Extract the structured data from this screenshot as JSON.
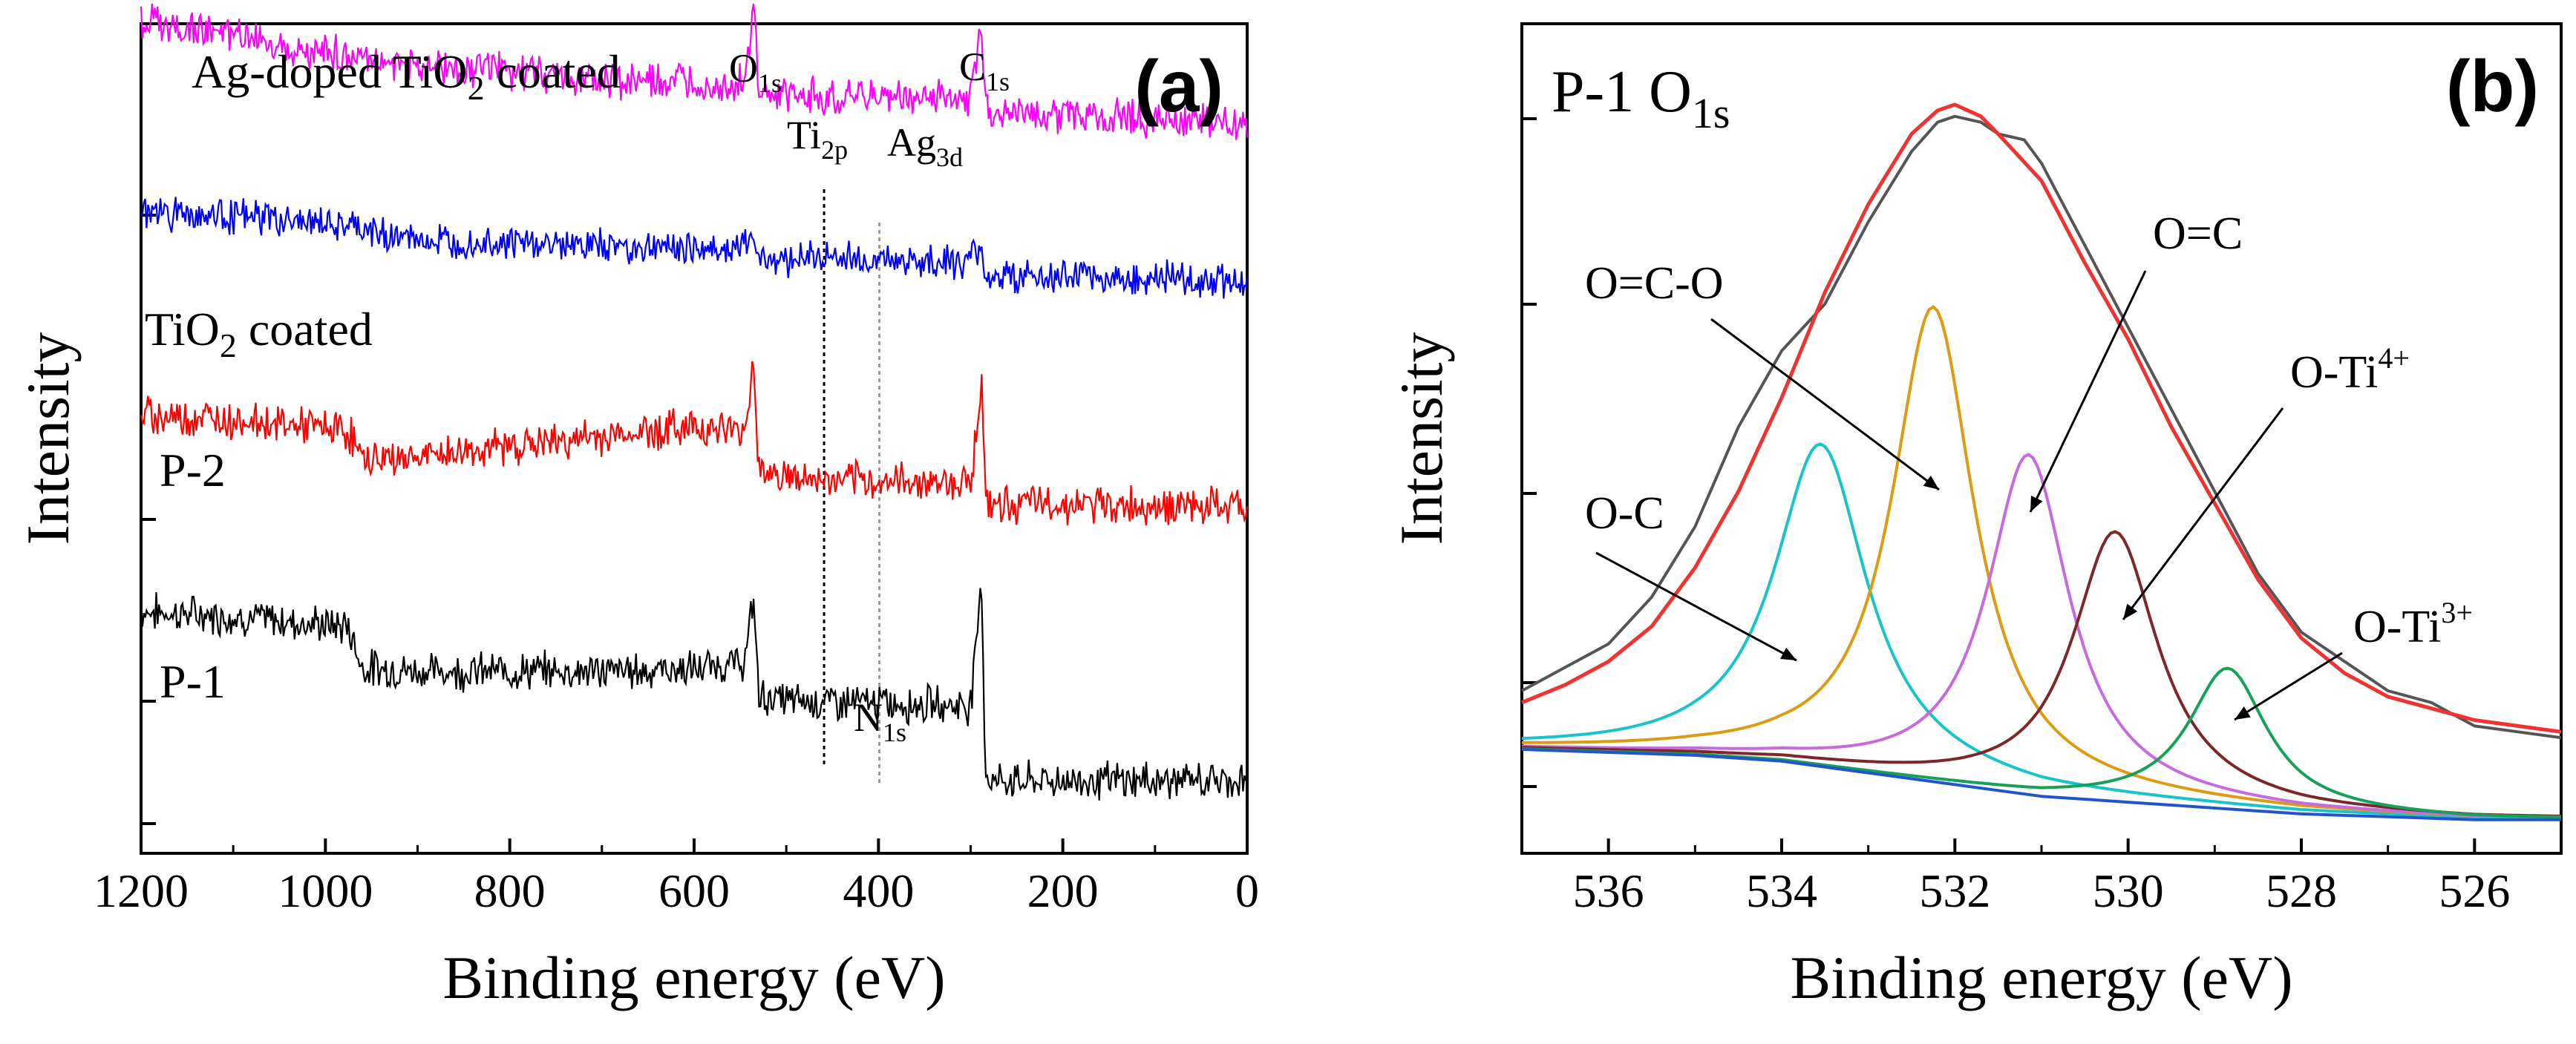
{
  "chart_data": [
    {
      "type": "line",
      "panel_label": "(a)",
      "xlabel": "Binding energy (eV)",
      "ylabel": "Intensity",
      "xlim": [
        1200,
        0
      ],
      "x_reversed": true,
      "x_ticks": [
        1200,
        1000,
        800,
        600,
        400,
        200,
        0
      ],
      "y_ticks_labeled": false,
      "series": [
        {
          "name": "P-1",
          "label": "P-1",
          "color": "#000000",
          "points": [
            [
              1200,
              1.05
            ],
            [
              1100,
              0.99
            ],
            [
              1000,
              0.9
            ],
            [
              975,
              0.88
            ],
            [
              960,
              0.42
            ],
            [
              900,
              0.38
            ],
            [
              800,
              0.38
            ],
            [
              700,
              0.38
            ],
            [
              600,
              0.4
            ],
            [
              545,
              0.48
            ],
            [
              535,
              1.2
            ],
            [
              530,
              0.1
            ],
            [
              500,
              0.05
            ],
            [
              460,
              0.04
            ],
            [
              400,
              0.02
            ],
            [
              300,
              0.0
            ],
            [
              288,
              1.4
            ],
            [
              284,
              -0.8
            ],
            [
              270,
              -0.85
            ],
            [
              100,
              -0.85
            ],
            [
              0,
              -0.85
            ]
          ]
        },
        {
          "name": "P-2",
          "label": "P-2",
          "color": "#ff0000",
          "points": [
            [
              1200,
              1.3
            ],
            [
              1100,
              1.25
            ],
            [
              1000,
              1.15
            ],
            [
              975,
              1.12
            ],
            [
              960,
              0.8
            ],
            [
              900,
              0.82
            ],
            [
              800,
              0.95
            ],
            [
              700,
              1.05
            ],
            [
              600,
              1.18
            ],
            [
              545,
              1.1
            ],
            [
              535,
              1.95
            ],
            [
              530,
              0.7
            ],
            [
              500,
              0.6
            ],
            [
              460,
              0.55
            ],
            [
              400,
              0.55
            ],
            [
              300,
              0.55
            ],
            [
              288,
              1.7
            ],
            [
              284,
              0.3
            ],
            [
              270,
              0.3
            ],
            [
              100,
              0.28
            ],
            [
              0,
              0.26
            ]
          ]
        },
        {
          "name": "TiO2 coated",
          "label_main": "TiO",
          "label_sub": "2",
          "label_tail": " coated",
          "color": "#0000ff",
          "points": [
            [
              1200,
              1.0
            ],
            [
              1100,
              0.95
            ],
            [
              1000,
              0.85
            ],
            [
              900,
              0.65
            ],
            [
              800,
              0.62
            ],
            [
              700,
              0.58
            ],
            [
              600,
              0.55
            ],
            [
              545,
              0.55
            ],
            [
              535,
              0.75
            ],
            [
              530,
              0.45
            ],
            [
              500,
              0.42
            ],
            [
              460,
              0.45
            ],
            [
              400,
              0.4
            ],
            [
              300,
              0.38
            ],
            [
              288,
              0.6
            ],
            [
              284,
              0.2
            ],
            [
              270,
              0.2
            ],
            [
              100,
              0.18
            ],
            [
              0,
              0.15
            ]
          ]
        },
        {
          "name": "Ag-doped TiO2 coated",
          "label_main": "Ag-doped TiO",
          "label_sub": "2",
          "label_tail": " coated",
          "color": "#ff00ff",
          "points": [
            [
              1200,
              1.55
            ],
            [
              1100,
              1.4
            ],
            [
              1000,
              1.2
            ],
            [
              900,
              1.05
            ],
            [
              800,
              1.0
            ],
            [
              700,
              0.9
            ],
            [
              600,
              0.85
            ],
            [
              545,
              0.85
            ],
            [
              535,
              1.75
            ],
            [
              530,
              0.7
            ],
            [
              500,
              0.7
            ],
            [
              460,
              0.72
            ],
            [
              400,
              0.7
            ],
            [
              300,
              0.7
            ],
            [
              288,
              1.55
            ],
            [
              284,
              0.55
            ],
            [
              270,
              0.55
            ],
            [
              100,
              0.45
            ],
            [
              0,
              0.4
            ]
          ]
        }
      ],
      "peak_labels": [
        {
          "main": "O",
          "sub": "1s",
          "x": 531
        },
        {
          "main": "Ti",
          "sub": "2p",
          "x": 459
        },
        {
          "main": "Ag",
          "sub": "3d",
          "x": 368
        },
        {
          "main": "C",
          "sub": "1s",
          "x": 285
        },
        {
          "main": "N",
          "sub": "1s",
          "x": 399
        }
      ],
      "reference_lines": [
        459,
        399
      ]
    },
    {
      "type": "line",
      "panel_label": "(b)",
      "title_main": "P-1 O",
      "title_sub": "1s",
      "xlabel": "Binding energy (eV)",
      "ylabel": "Intensity",
      "xlim": [
        537,
        525
      ],
      "x_reversed": true,
      "x_ticks": [
        536,
        534,
        532,
        530,
        528,
        526
      ],
      "y_ticks_labeled": false,
      "series": [
        {
          "name": "Raw data",
          "color": "#555555",
          "points": [
            [
              537,
              0.1
            ],
            [
              536.5,
              0.14
            ],
            [
              536,
              0.18
            ],
            [
              535.5,
              0.26
            ],
            [
              535,
              0.38
            ],
            [
              534.5,
              0.55
            ],
            [
              534,
              0.68
            ],
            [
              533.5,
              0.76
            ],
            [
              533,
              0.9
            ],
            [
              532.5,
              1.02
            ],
            [
              532.2,
              1.07
            ],
            [
              532,
              1.08
            ],
            [
              531.7,
              1.07
            ],
            [
              531.5,
              1.05
            ],
            [
              531.2,
              1.04
            ],
            [
              531,
              1.0
            ],
            [
              530.5,
              0.86
            ],
            [
              530,
              0.72
            ],
            [
              529.5,
              0.58
            ],
            [
              529,
              0.44
            ],
            [
              528.5,
              0.3
            ],
            [
              528,
              0.2
            ],
            [
              527.5,
              0.15
            ],
            [
              527,
              0.1
            ],
            [
              526.5,
              0.08
            ],
            [
              526,
              0.04
            ],
            [
              525.5,
              0.03
            ],
            [
              525,
              0.02
            ]
          ]
        },
        {
          "name": "Fitted envelope",
          "color": "#ee3333",
          "points": [
            [
              537,
              0.08
            ],
            [
              536.5,
              0.11
            ],
            [
              536,
              0.15
            ],
            [
              535.5,
              0.21
            ],
            [
              535,
              0.31
            ],
            [
              534.5,
              0.44
            ],
            [
              534,
              0.6
            ],
            [
              533.5,
              0.78
            ],
            [
              533,
              0.93
            ],
            [
              532.5,
              1.05
            ],
            [
              532.2,
              1.09
            ],
            [
              532,
              1.1
            ],
            [
              531.7,
              1.08
            ],
            [
              531.5,
              1.05
            ],
            [
              531,
              0.97
            ],
            [
              530.5,
              0.83
            ],
            [
              530,
              0.7
            ],
            [
              529.5,
              0.55
            ],
            [
              529,
              0.42
            ],
            [
              528.5,
              0.29
            ],
            [
              528,
              0.19
            ],
            [
              527.5,
              0.13
            ],
            [
              527,
              0.09
            ],
            [
              526.5,
              0.07
            ],
            [
              526,
              0.05
            ],
            [
              525.5,
              0.04
            ],
            [
              525,
              0.03
            ]
          ]
        },
        {
          "name": "O-C",
          "label": "O-C",
          "color": "#18c4c8",
          "peak_center": 533.55,
          "peak_height": 0.55,
          "fwhm": 1.3
        },
        {
          "name": "O=C-O",
          "label": "O=C-O",
          "color": "#dc9b12",
          "peak_center": 532.25,
          "peak_height": 0.81,
          "fwhm": 1.15
        },
        {
          "name": "O=C",
          "label": "O=C",
          "color": "#c66ae0",
          "peak_center": 531.15,
          "peak_height": 0.58,
          "fwhm": 1.15
        },
        {
          "name": "O-Ti4+",
          "label_main": "O-Ti",
          "label_sup": "4+",
          "color": "#7d2828",
          "peak_center": 530.15,
          "peak_height": 0.46,
          "fwhm": 1.2
        },
        {
          "name": "O-Ti3+",
          "label_main": "O-Ti",
          "label_sup": "3+",
          "color": "#16a05a",
          "peak_center": 528.85,
          "peak_height": 0.24,
          "fwhm": 1.1
        },
        {
          "name": "Background",
          "color": "#2255cc",
          "points": [
            [
              537,
              0.0
            ],
            [
              535,
              -0.01
            ],
            [
              534,
              -0.02
            ],
            [
              533,
              -0.04
            ],
            [
              532,
              -0.06
            ],
            [
              531,
              -0.08
            ],
            [
              530,
              -0.09
            ],
            [
              529,
              -0.1
            ],
            [
              528,
              -0.11
            ],
            [
              527,
              -0.115
            ],
            [
              526,
              -0.12
            ],
            [
              525,
              -0.12
            ]
          ]
        }
      ]
    }
  ]
}
